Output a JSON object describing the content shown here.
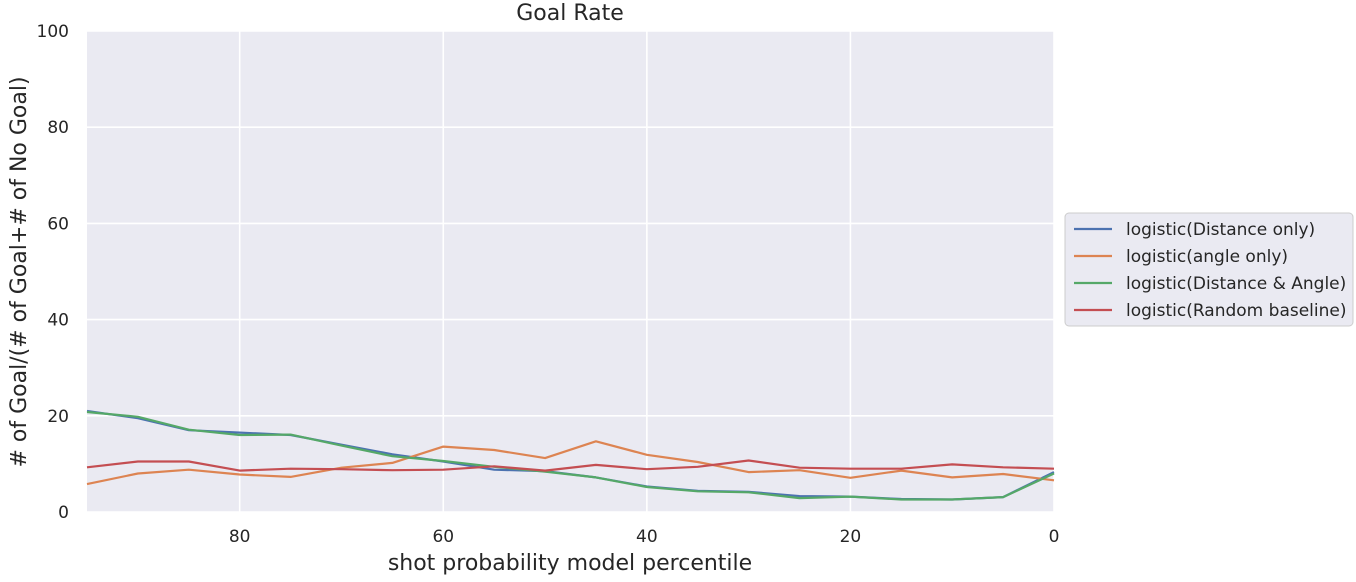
{
  "chart_data": {
    "type": "line",
    "title": "Goal Rate",
    "xlabel": "shot probability model percentile",
    "ylabel": "# of Goal/(# of Goal+# of No Goal)",
    "xlim": [
      95,
      0
    ],
    "ylim": [
      0,
      100
    ],
    "x_inverted": true,
    "xticks": [
      80,
      60,
      40,
      20,
      0
    ],
    "yticks": [
      0,
      20,
      40,
      60,
      80,
      100
    ],
    "grid": true,
    "legend_position": "center-right-outside",
    "x": [
      95,
      90,
      85,
      80,
      75,
      70,
      65,
      60,
      55,
      50,
      45,
      40,
      35,
      30,
      25,
      20,
      15,
      10,
      5,
      0
    ],
    "series": [
      {
        "name": "logistic(Distance only)",
        "color": "#4c72b0",
        "values": [
          21.0,
          19.5,
          17.0,
          16.5,
          16.0,
          14.0,
          12.0,
          10.5,
          8.8,
          8.5,
          7.2,
          5.3,
          4.4,
          4.2,
          3.3,
          3.2,
          2.7,
          2.6,
          3.1,
          8.3
        ]
      },
      {
        "name": "logistic(angle only)",
        "color": "#dd8452",
        "values": [
          5.8,
          8.0,
          8.8,
          7.8,
          7.3,
          9.2,
          10.2,
          13.6,
          12.9,
          11.2,
          14.7,
          11.9,
          10.4,
          8.3,
          8.7,
          7.1,
          8.6,
          7.2,
          7.9,
          6.6
        ]
      },
      {
        "name": "logistic(Distance & Angle)",
        "color": "#55a868",
        "values": [
          20.8,
          19.8,
          17.1,
          16.0,
          16.1,
          13.8,
          11.6,
          10.6,
          9.4,
          8.4,
          7.2,
          5.2,
          4.3,
          4.1,
          2.9,
          3.2,
          2.6,
          2.6,
          3.1,
          8.0
        ]
      },
      {
        "name": "logistic(Random baseline)",
        "color": "#c44e52",
        "values": [
          9.3,
          10.5,
          10.5,
          8.6,
          9.0,
          8.9,
          8.7,
          8.8,
          9.5,
          8.6,
          9.8,
          8.9,
          9.4,
          10.7,
          9.2,
          9.0,
          9.0,
          9.9,
          9.3,
          9.0
        ]
      }
    ]
  }
}
